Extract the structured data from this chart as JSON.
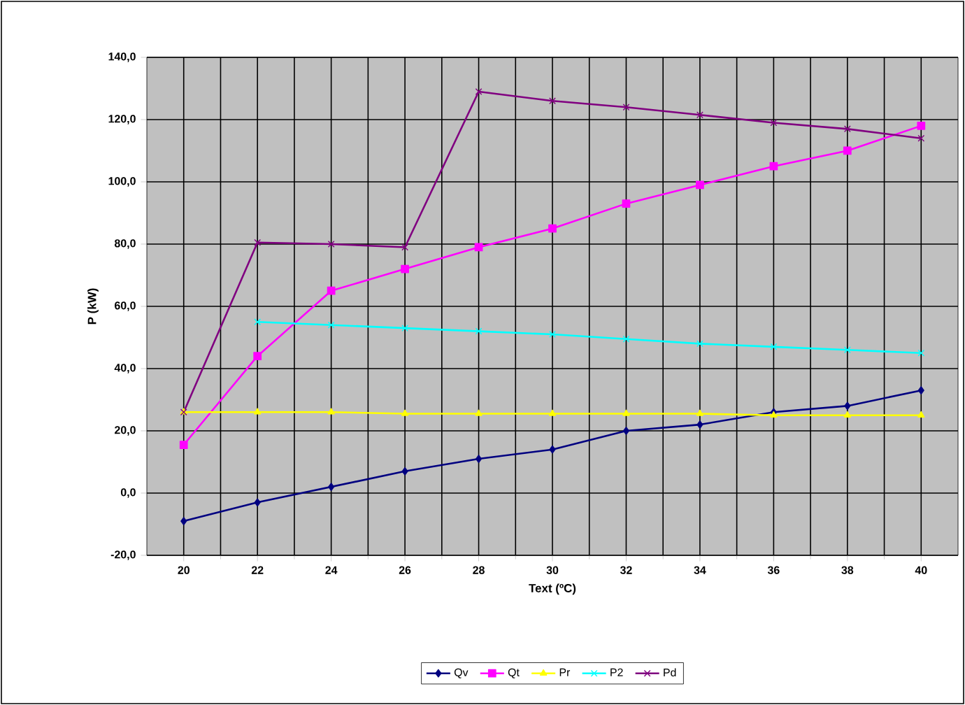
{
  "chart_data": {
    "type": "line",
    "xlabel": "Text (ºC)",
    "ylabel": "P (kW)",
    "x": [
      20,
      22,
      24,
      26,
      28,
      30,
      32,
      34,
      36,
      38,
      40
    ],
    "xlim": [
      19,
      41
    ],
    "xticks": [
      20,
      22,
      24,
      26,
      28,
      30,
      32,
      34,
      36,
      38,
      40
    ],
    "ylim": [
      -20,
      140
    ],
    "yticks": [
      {
        "value": -20,
        "label": "-20,0"
      },
      {
        "value": 0,
        "label": "0,0"
      },
      {
        "value": 20,
        "label": "20,0"
      },
      {
        "value": 40,
        "label": "40,0"
      },
      {
        "value": 60,
        "label": "60,0"
      },
      {
        "value": 80,
        "label": "80,0"
      },
      {
        "value": 100,
        "label": "100,0"
      },
      {
        "value": 120,
        "label": "120,0"
      },
      {
        "value": 140,
        "label": "140,0"
      }
    ],
    "grid": true,
    "legend": "bottom",
    "series": [
      {
        "name": "Qv",
        "color": "#000080",
        "marker": "diamond",
        "values": [
          -9,
          -3,
          2,
          7,
          11,
          14,
          20,
          22,
          26,
          28,
          33
        ]
      },
      {
        "name": "Qt",
        "color": "#ff00ff",
        "marker": "square",
        "values": [
          15.5,
          44,
          65,
          72,
          79,
          85,
          93,
          99,
          105,
          110,
          118
        ]
      },
      {
        "name": "Pr",
        "color": "#ffff00",
        "marker": "triangle",
        "values": [
          26,
          26,
          26,
          25.5,
          25.5,
          25.5,
          25.5,
          25.5,
          25,
          25,
          25
        ]
      },
      {
        "name": "P2",
        "color": "#00ffff",
        "marker": "cross",
        "values": [
          null,
          55,
          54,
          53,
          52,
          51,
          49.5,
          48,
          47,
          46,
          45
        ]
      },
      {
        "name": "Pd",
        "color": "#800080",
        "marker": "cross",
        "values": [
          26,
          80.5,
          80,
          79,
          129,
          126,
          124,
          121.5,
          119,
          117,
          114
        ]
      }
    ]
  }
}
